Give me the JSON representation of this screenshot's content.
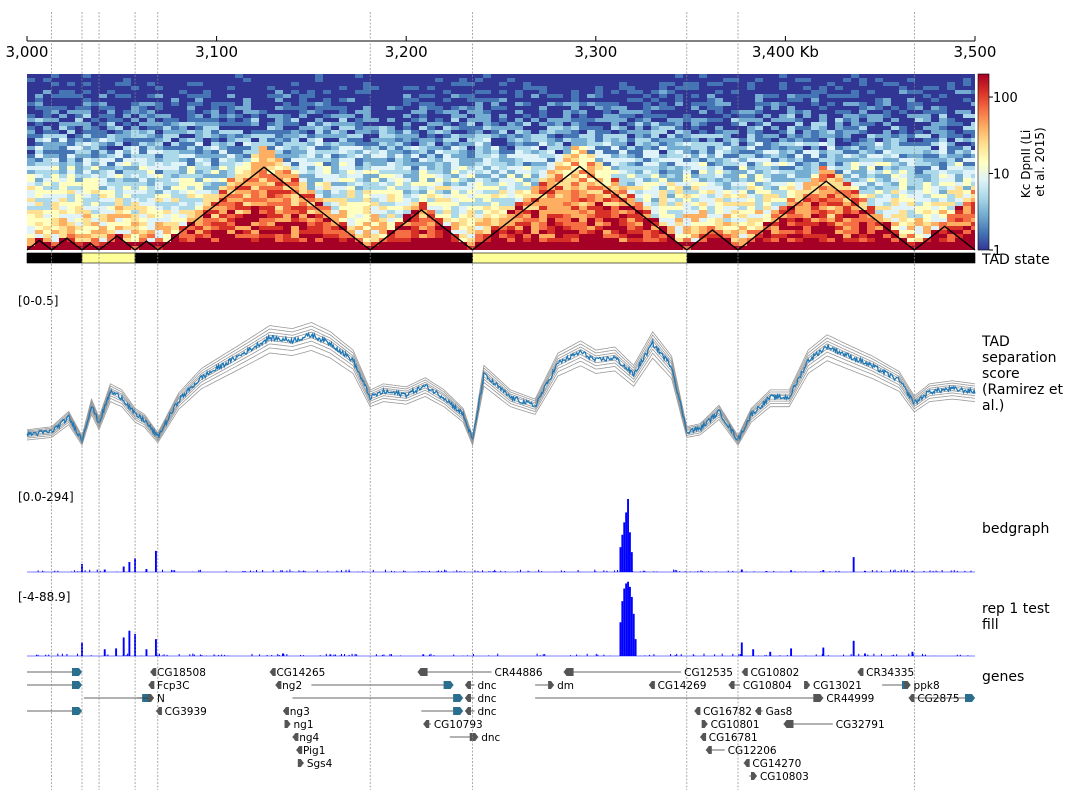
{
  "axis": {
    "start_kb": 3000,
    "end_kb": 3500,
    "ticks": [
      {
        "v": 3000,
        "label": "3,000"
      },
      {
        "v": 3100,
        "label": "3,100"
      },
      {
        "v": 3200,
        "label": "3,200"
      },
      {
        "v": 3300,
        "label": "3,300"
      },
      {
        "v": 3400,
        "label": "3,400 Kb"
      },
      {
        "v": 3500,
        "label": "3,500"
      }
    ]
  },
  "vlines_kb": [
    3013,
    3029,
    3038,
    3057,
    3069,
    3181,
    3235,
    3348,
    3375,
    3468
  ],
  "hic": {
    "colorbar_title": "Kc DpnII (Li et al. 2015)",
    "colorbar_title_lines": [
      "Kc DpnII (Li",
      "et al. 2015)"
    ],
    "colorbar_ticks": [
      {
        "v": 100,
        "label": "100"
      },
      {
        "v": 10,
        "label": "10"
      },
      {
        "v": 1,
        "label": "1"
      }
    ],
    "colorbar_range": [
      1,
      200
    ],
    "log_scale": true,
    "cmap": [
      "#313695",
      "#4575b4",
      "#74add1",
      "#abd9e9",
      "#e0f3f8",
      "#ffffbf",
      "#fee090",
      "#fdae61",
      "#f46d43",
      "#d73027",
      "#a50026"
    ],
    "domains_kb": [
      [
        3000,
        3013
      ],
      [
        3013,
        3029
      ],
      [
        3029,
        3038
      ],
      [
        3038,
        3057
      ],
      [
        3057,
        3069
      ],
      [
        3069,
        3181
      ],
      [
        3181,
        3235
      ],
      [
        3235,
        3348
      ],
      [
        3348,
        3375
      ],
      [
        3375,
        3468
      ],
      [
        3468,
        3500
      ]
    ]
  },
  "tad_state": {
    "label": "TAD state",
    "segments": [
      {
        "start": 3000,
        "end": 3029,
        "color": "#000000"
      },
      {
        "start": 3029,
        "end": 3057,
        "color": "#ffff99"
      },
      {
        "start": 3057,
        "end": 3235,
        "color": "#000000"
      },
      {
        "start": 3235,
        "end": 3348,
        "color": "#ffff99"
      },
      {
        "start": 3348,
        "end": 3500,
        "color": "#000000"
      }
    ]
  },
  "tad_score": {
    "label": "TAD separation score (Ramirez et al.)",
    "label_lines": [
      "TAD",
      "separation",
      "score",
      "(Ramirez et",
      "al.)"
    ],
    "range_label": "[0-0.5]",
    "ymin": 0,
    "ymax": 0.5,
    "line_color": "#1f77b4",
    "grey_color": "#999999",
    "points": [
      [
        3000,
        0.02
      ],
      [
        3013,
        0.03
      ],
      [
        3022,
        0.08
      ],
      [
        3029,
        0.0
      ],
      [
        3034,
        0.12
      ],
      [
        3038,
        0.06
      ],
      [
        3044,
        0.17
      ],
      [
        3050,
        0.15
      ],
      [
        3057,
        0.09
      ],
      [
        3062,
        0.07
      ],
      [
        3069,
        0.01
      ],
      [
        3080,
        0.14
      ],
      [
        3092,
        0.22
      ],
      [
        3105,
        0.27
      ],
      [
        3118,
        0.32
      ],
      [
        3128,
        0.36
      ],
      [
        3140,
        0.35
      ],
      [
        3150,
        0.37
      ],
      [
        3160,
        0.34
      ],
      [
        3172,
        0.28
      ],
      [
        3181,
        0.15
      ],
      [
        3188,
        0.17
      ],
      [
        3200,
        0.16
      ],
      [
        3210,
        0.19
      ],
      [
        3220,
        0.15
      ],
      [
        3230,
        0.09
      ],
      [
        3235,
        0.0
      ],
      [
        3241,
        0.23
      ],
      [
        3255,
        0.15
      ],
      [
        3268,
        0.12
      ],
      [
        3280,
        0.27
      ],
      [
        3292,
        0.31
      ],
      [
        3300,
        0.28
      ],
      [
        3310,
        0.29
      ],
      [
        3320,
        0.23
      ],
      [
        3330,
        0.34
      ],
      [
        3340,
        0.26
      ],
      [
        3348,
        0.03
      ],
      [
        3355,
        0.04
      ],
      [
        3365,
        0.1
      ],
      [
        3375,
        0.0
      ],
      [
        3382,
        0.09
      ],
      [
        3392,
        0.15
      ],
      [
        3402,
        0.15
      ],
      [
        3412,
        0.28
      ],
      [
        3422,
        0.33
      ],
      [
        3432,
        0.3
      ],
      [
        3446,
        0.26
      ],
      [
        3460,
        0.21
      ],
      [
        3468,
        0.13
      ],
      [
        3476,
        0.17
      ],
      [
        3488,
        0.18
      ],
      [
        3500,
        0.17
      ]
    ]
  },
  "bedgraph": {
    "label": "bedgraph",
    "range_label": "[0.0-294]",
    "ymin": 0,
    "ymax": 294,
    "color": "#0000ff",
    "peaks": [
      [
        3029,
        32
      ],
      [
        3041,
        10
      ],
      [
        3051,
        22
      ],
      [
        3054,
        40
      ],
      [
        3057,
        55
      ],
      [
        3063,
        12
      ],
      [
        3068,
        85
      ],
      [
        3115,
        3
      ],
      [
        3140,
        2
      ],
      [
        3170,
        3
      ],
      [
        3209,
        2
      ],
      [
        3247,
        3
      ],
      [
        3300,
        2
      ],
      [
        3313,
        100
      ],
      [
        3314,
        150
      ],
      [
        3315,
        200
      ],
      [
        3316,
        240
      ],
      [
        3317,
        294
      ],
      [
        3318,
        160
      ],
      [
        3319,
        80
      ],
      [
        3377,
        10
      ],
      [
        3390,
        4
      ],
      [
        3403,
        7
      ],
      [
        3420,
        8
      ],
      [
        3436,
        60
      ],
      [
        3442,
        4
      ],
      [
        3467,
        5
      ]
    ]
  },
  "rep1": {
    "label": "rep 1 test fill",
    "label_lines": [
      "rep 1 test",
      "fill"
    ],
    "range_label": "[-4-88.9]",
    "ymin": -4,
    "ymax": 88.9,
    "color": "#0000ff",
    "peaks": [
      [
        3029,
        16
      ],
      [
        3041,
        8
      ],
      [
        3047,
        9
      ],
      [
        3051,
        22
      ],
      [
        3054,
        30
      ],
      [
        3057,
        26
      ],
      [
        3063,
        8
      ],
      [
        3068,
        20
      ],
      [
        3135,
        3
      ],
      [
        3160,
        2
      ],
      [
        3209,
        2
      ],
      [
        3313,
        40
      ],
      [
        3314,
        65
      ],
      [
        3315,
        80
      ],
      [
        3316,
        86
      ],
      [
        3317,
        88
      ],
      [
        3318,
        82
      ],
      [
        3319,
        70
      ],
      [
        3320,
        50
      ],
      [
        3321,
        20
      ],
      [
        3377,
        16
      ],
      [
        3383,
        8
      ],
      [
        3392,
        5
      ],
      [
        3403,
        9
      ],
      [
        3420,
        10
      ],
      [
        3436,
        18
      ],
      [
        3442,
        3
      ],
      [
        3467,
        5
      ]
    ]
  },
  "genes": {
    "label": "genes",
    "items": [
      {
        "name": "",
        "start": 3000,
        "end": 3029,
        "row": 0,
        "strand": "+"
      },
      {
        "name": "CG18508",
        "start": 3065,
        "end": 3067,
        "row": 0,
        "strand": "-"
      },
      {
        "name": "CG14265",
        "start": 3128,
        "end": 3130,
        "row": 0,
        "strand": "-"
      },
      {
        "name": "CR44886",
        "start": 3206,
        "end": 3245,
        "row": 0,
        "strand": "-"
      },
      {
        "name": "CG12535",
        "start": 3283,
        "end": 3345,
        "row": 0,
        "strand": "-"
      },
      {
        "name": "CG10802",
        "start": 3377,
        "end": 3380,
        "row": 0,
        "strand": "-"
      },
      {
        "name": "CR34335",
        "start": 3438,
        "end": 3441,
        "row": 0,
        "strand": "-"
      },
      {
        "name": "",
        "start": 3000,
        "end": 3029,
        "row": 1,
        "strand": "+"
      },
      {
        "name": "Fcp3C",
        "start": 3064,
        "end": 3067,
        "row": 1,
        "strand": "-"
      },
      {
        "name": "ng2",
        "start": 3131,
        "end": 3133,
        "row": 1,
        "strand": "-"
      },
      {
        "name": "",
        "start": 3150,
        "end": 3225,
        "row": 1,
        "strand": "+"
      },
      {
        "name": "dnc",
        "start": 3231,
        "end": 3236,
        "row": 1,
        "strand": "-"
      },
      {
        "name": "dm",
        "start": 3268,
        "end": 3278,
        "row": 1,
        "strand": "+"
      },
      {
        "name": "CG14269",
        "start": 3328,
        "end": 3331,
        "row": 1,
        "strand": "-"
      },
      {
        "name": "CG10804",
        "start": 3370,
        "end": 3376,
        "row": 1,
        "strand": "-"
      },
      {
        "name": "CG13021",
        "start": 3410,
        "end": 3413,
        "row": 1,
        "strand": "+"
      },
      {
        "name": "",
        "start": 3451,
        "end": 3466,
        "row": 1,
        "strand": "+"
      },
      {
        "name": "ppk8",
        "start": 3463,
        "end": 3466,
        "row": 1,
        "strand": "+"
      },
      {
        "name": "",
        "start": 3030,
        "end": 3066,
        "row": 2,
        "strand": "+"
      },
      {
        "name": "N",
        "start": 3058,
        "end": 3067,
        "row": 2,
        "strand": "+"
      },
      {
        "name": "",
        "start": 3140,
        "end": 3230,
        "row": 2,
        "strand": "+"
      },
      {
        "name": "dnc",
        "start": 3231,
        "end": 3236,
        "row": 2,
        "strand": "-"
      },
      {
        "name": "CR44999",
        "start": 3268,
        "end": 3420,
        "row": 2,
        "strand": "+"
      },
      {
        "name": "CG2875",
        "start": 3465,
        "end": 3468,
        "row": 2,
        "strand": "-"
      },
      {
        "name": "",
        "start": 3468,
        "end": 3500,
        "row": 2,
        "strand": "+"
      },
      {
        "name": "",
        "start": 3000,
        "end": 3029,
        "row": 3,
        "strand": "+"
      },
      {
        "name": "CG3939",
        "start": 3068,
        "end": 3071,
        "row": 3,
        "strand": "-"
      },
      {
        "name": "ng3",
        "start": 3135,
        "end": 3137,
        "row": 3,
        "strand": "-"
      },
      {
        "name": "",
        "start": 3208,
        "end": 3230,
        "row": 3,
        "strand": "+"
      },
      {
        "name": "dnc",
        "start": 3231,
        "end": 3236,
        "row": 3,
        "strand": "-"
      },
      {
        "name": "CG16782",
        "start": 3352,
        "end": 3355,
        "row": 3,
        "strand": "-"
      },
      {
        "name": "Gas8",
        "start": 3384,
        "end": 3388,
        "row": 3,
        "strand": "-"
      },
      {
        "name": "ng1",
        "start": 3137,
        "end": 3139,
        "row": 4,
        "strand": "+"
      },
      {
        "name": "CG10793",
        "start": 3209,
        "end": 3213,
        "row": 4,
        "strand": "-"
      },
      {
        "name": "CG10801",
        "start": 3356,
        "end": 3359,
        "row": 4,
        "strand": "+"
      },
      {
        "name": "CG32791",
        "start": 3399,
        "end": 3425,
        "row": 4,
        "strand": "-"
      },
      {
        "name": "ng4",
        "start": 3140,
        "end": 3142,
        "row": 5,
        "strand": "-"
      },
      {
        "name": "dnc",
        "start": 3223,
        "end": 3238,
        "row": 5,
        "strand": "+"
      },
      {
        "name": "CG16781",
        "start": 3355,
        "end": 3358,
        "row": 5,
        "strand": "-"
      },
      {
        "name": "Pig1",
        "start": 3142,
        "end": 3144,
        "row": 6,
        "strand": "-"
      },
      {
        "name": "CG12206",
        "start": 3358,
        "end": 3368,
        "row": 6,
        "strand": "-"
      },
      {
        "name": "Sgs4",
        "start": 3144,
        "end": 3146,
        "row": 7,
        "strand": "+"
      },
      {
        "name": "CG14270",
        "start": 3378,
        "end": 3381,
        "row": 7,
        "strand": "-"
      },
      {
        "name": "CG10803",
        "start": 3381,
        "end": 3385,
        "row": 8,
        "strand": "+"
      }
    ]
  }
}
